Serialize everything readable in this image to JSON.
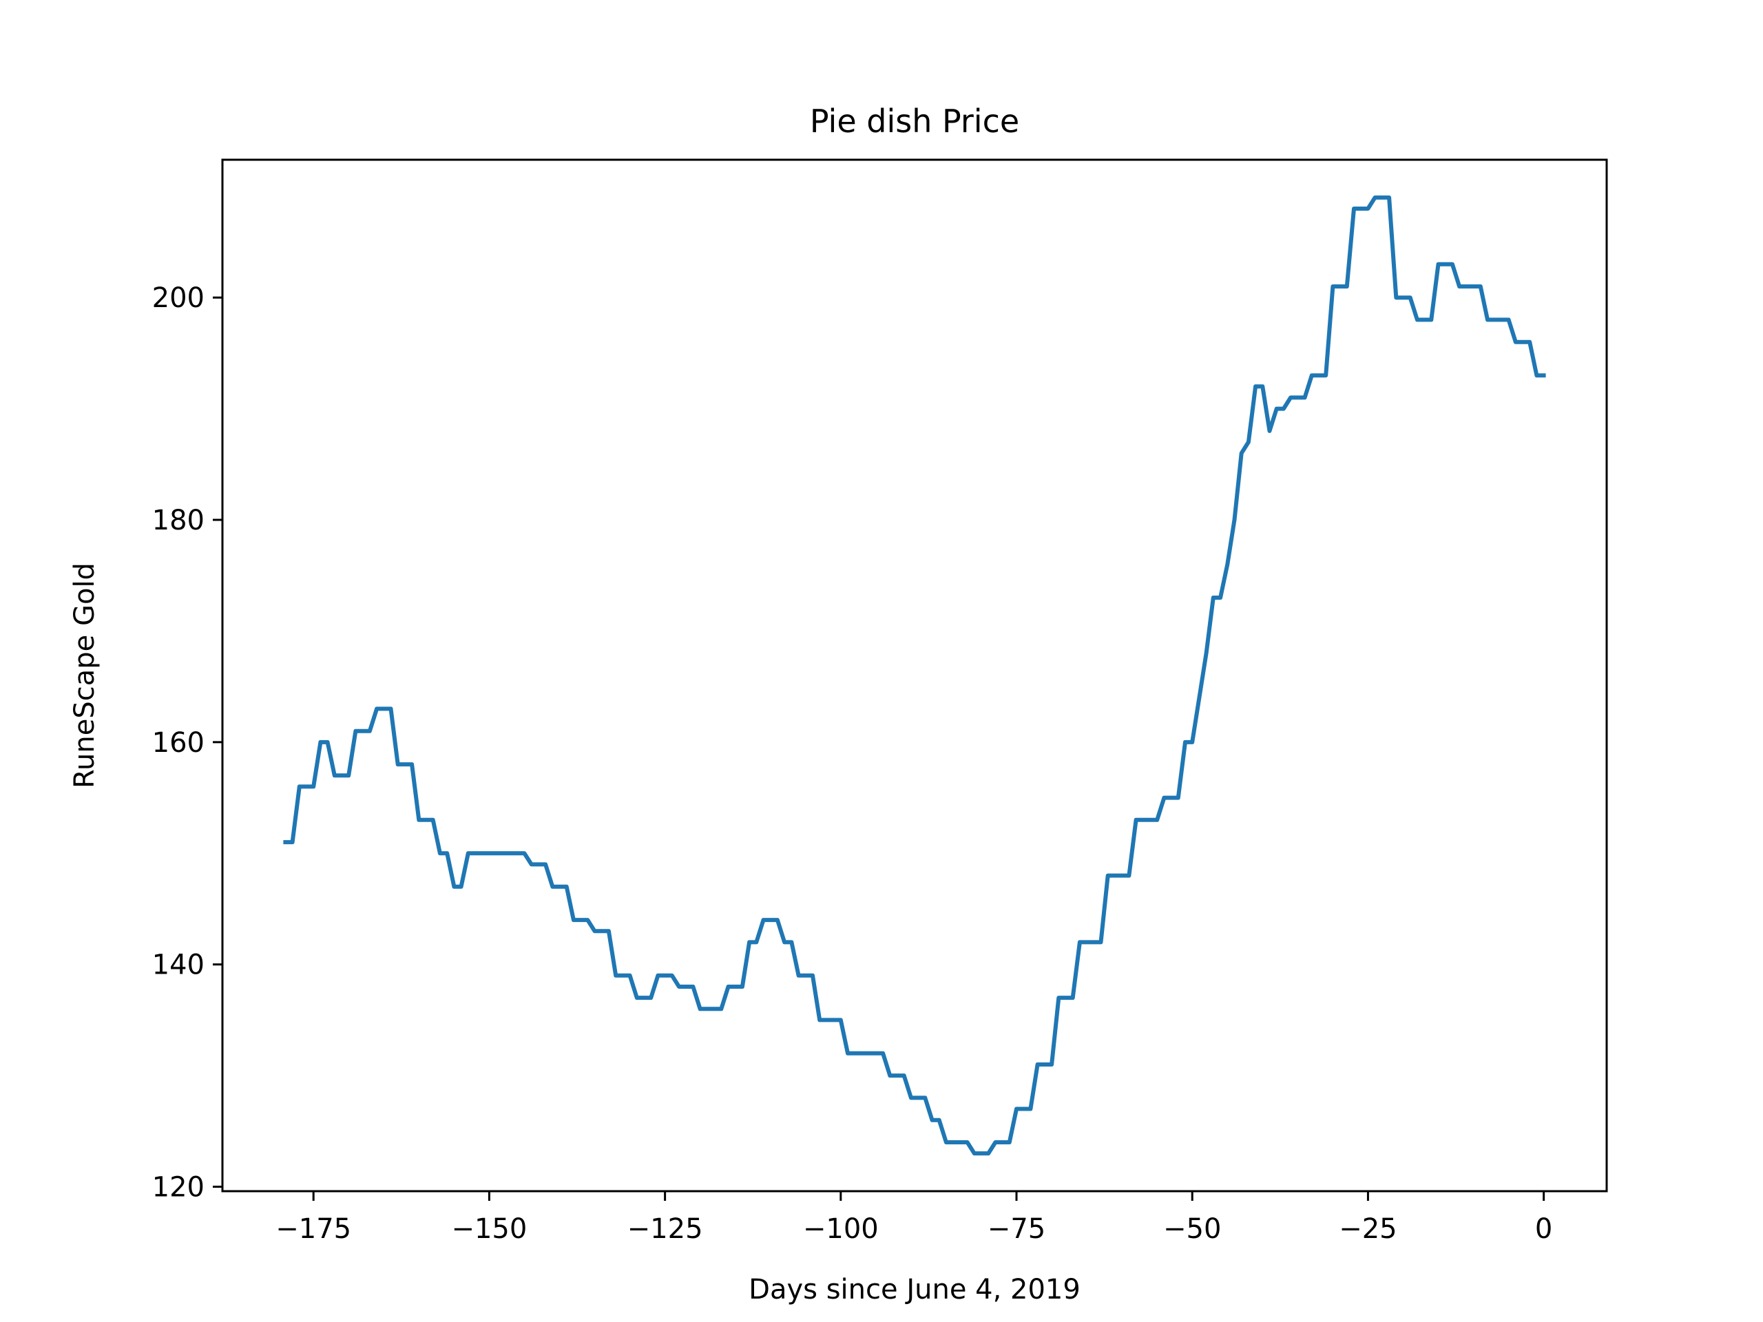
{
  "chart_data": {
    "type": "line",
    "title": "Pie dish Price",
    "xlabel": "Days since June 4, 2019",
    "ylabel": "RuneScape Gold",
    "xlim": [
      -187.95,
      8.95
    ],
    "ylim": [
      119.6,
      212.4
    ],
    "grid": false,
    "x_ticks": [
      -175,
      -150,
      -125,
      -100,
      -75,
      -50,
      -25,
      0
    ],
    "x_tick_labels": [
      "−175",
      "−150",
      "−125",
      "−100",
      "−75",
      "−50",
      "−25",
      "0"
    ],
    "y_ticks": [
      120,
      140,
      160,
      180,
      200
    ],
    "y_tick_labels": [
      "120",
      "140",
      "160",
      "180",
      "200"
    ],
    "series": [
      {
        "color": "#1f77b4",
        "points": [
          [
            -179,
            151
          ],
          [
            -178,
            151
          ],
          [
            -177,
            156
          ],
          [
            -176,
            156
          ],
          [
            -175,
            156
          ],
          [
            -174,
            160
          ],
          [
            -173,
            160
          ],
          [
            -172,
            157
          ],
          [
            -171,
            157
          ],
          [
            -170,
            157
          ],
          [
            -169,
            161
          ],
          [
            -168,
            161
          ],
          [
            -167,
            161
          ],
          [
            -166,
            163
          ],
          [
            -165,
            163
          ],
          [
            -164,
            163
          ],
          [
            -163,
            158
          ],
          [
            -162,
            158
          ],
          [
            -161,
            158
          ],
          [
            -160,
            153
          ],
          [
            -159,
            153
          ],
          [
            -158,
            153
          ],
          [
            -157,
            150
          ],
          [
            -156,
            150
          ],
          [
            -155,
            147
          ],
          [
            -154,
            147
          ],
          [
            -153,
            150
          ],
          [
            -152,
            150
          ],
          [
            -151,
            150
          ],
          [
            -150,
            150
          ],
          [
            -149,
            150
          ],
          [
            -148,
            150
          ],
          [
            -147,
            150
          ],
          [
            -146,
            150
          ],
          [
            -145,
            150
          ],
          [
            -144,
            149
          ],
          [
            -143,
            149
          ],
          [
            -142,
            149
          ],
          [
            -141,
            147
          ],
          [
            -140,
            147
          ],
          [
            -139,
            147
          ],
          [
            -138,
            144
          ],
          [
            -137,
            144
          ],
          [
            -136,
            144
          ],
          [
            -135,
            143
          ],
          [
            -134,
            143
          ],
          [
            -133,
            143
          ],
          [
            -132,
            139
          ],
          [
            -131,
            139
          ],
          [
            -130,
            139
          ],
          [
            -129,
            137
          ],
          [
            -128,
            137
          ],
          [
            -127,
            137
          ],
          [
            -126,
            139
          ],
          [
            -125,
            139
          ],
          [
            -124,
            139
          ],
          [
            -123,
            138
          ],
          [
            -122,
            138
          ],
          [
            -121,
            138
          ],
          [
            -120,
            136
          ],
          [
            -119,
            136
          ],
          [
            -118,
            136
          ],
          [
            -117,
            136
          ],
          [
            -116,
            138
          ],
          [
            -115,
            138
          ],
          [
            -114,
            138
          ],
          [
            -113,
            142
          ],
          [
            -112,
            142
          ],
          [
            -111,
            144
          ],
          [
            -110,
            144
          ],
          [
            -109,
            144
          ],
          [
            -108,
            142
          ],
          [
            -107,
            142
          ],
          [
            -106,
            139
          ],
          [
            -105,
            139
          ],
          [
            -104,
            139
          ],
          [
            -103,
            135
          ],
          [
            -102,
            135
          ],
          [
            -101,
            135
          ],
          [
            -100,
            135
          ],
          [
            -99,
            132
          ],
          [
            -98,
            132
          ],
          [
            -97,
            132
          ],
          [
            -96,
            132
          ],
          [
            -95,
            132
          ],
          [
            -94,
            132
          ],
          [
            -93,
            130
          ],
          [
            -92,
            130
          ],
          [
            -91,
            130
          ],
          [
            -90,
            128
          ],
          [
            -89,
            128
          ],
          [
            -88,
            128
          ],
          [
            -87,
            126
          ],
          [
            -86,
            126
          ],
          [
            -85,
            124
          ],
          [
            -84,
            124
          ],
          [
            -83,
            124
          ],
          [
            -82,
            124
          ],
          [
            -81,
            123
          ],
          [
            -80,
            123
          ],
          [
            -79,
            123
          ],
          [
            -78,
            124
          ],
          [
            -77,
            124
          ],
          [
            -76,
            124
          ],
          [
            -75,
            127
          ],
          [
            -74,
            127
          ],
          [
            -73,
            127
          ],
          [
            -72,
            131
          ],
          [
            -71,
            131
          ],
          [
            -70,
            131
          ],
          [
            -69,
            137
          ],
          [
            -68,
            137
          ],
          [
            -67,
            137
          ],
          [
            -66,
            142
          ],
          [
            -65,
            142
          ],
          [
            -64,
            142
          ],
          [
            -63,
            142
          ],
          [
            -62,
            148
          ],
          [
            -61,
            148
          ],
          [
            -60,
            148
          ],
          [
            -59,
            148
          ],
          [
            -58,
            153
          ],
          [
            -57,
            153
          ],
          [
            -56,
            153
          ],
          [
            -55,
            153
          ],
          [
            -54,
            155
          ],
          [
            -53,
            155
          ],
          [
            -52,
            155
          ],
          [
            -51,
            160
          ],
          [
            -50,
            160
          ],
          [
            -49,
            164
          ],
          [
            -48,
            168
          ],
          [
            -47,
            173
          ],
          [
            -46,
            173
          ],
          [
            -45,
            176
          ],
          [
            -44,
            180
          ],
          [
            -43,
            186
          ],
          [
            -42,
            187
          ],
          [
            -41,
            192
          ],
          [
            -40,
            192
          ],
          [
            -39,
            188
          ],
          [
            -38,
            190
          ],
          [
            -37,
            190
          ],
          [
            -36,
            191
          ],
          [
            -35,
            191
          ],
          [
            -34,
            191
          ],
          [
            -33,
            193
          ],
          [
            -32,
            193
          ],
          [
            -31,
            193
          ],
          [
            -30,
            201
          ],
          [
            -29,
            201
          ],
          [
            -28,
            201
          ],
          [
            -27,
            208
          ],
          [
            -26,
            208
          ],
          [
            -25,
            208
          ],
          [
            -24,
            209
          ],
          [
            -23,
            209
          ],
          [
            -22,
            209
          ],
          [
            -21,
            200
          ],
          [
            -20,
            200
          ],
          [
            -19,
            200
          ],
          [
            -18,
            198
          ],
          [
            -17,
            198
          ],
          [
            -16,
            198
          ],
          [
            -15,
            203
          ],
          [
            -14,
            203
          ],
          [
            -13,
            203
          ],
          [
            -12,
            201
          ],
          [
            -11,
            201
          ],
          [
            -10,
            201
          ],
          [
            -9,
            201
          ],
          [
            -8,
            198
          ],
          [
            -7,
            198
          ],
          [
            -6,
            198
          ],
          [
            -5,
            198
          ],
          [
            -4,
            196
          ],
          [
            -3,
            196
          ],
          [
            -2,
            196
          ],
          [
            -1,
            193
          ],
          [
            0,
            193
          ]
        ]
      }
    ]
  }
}
